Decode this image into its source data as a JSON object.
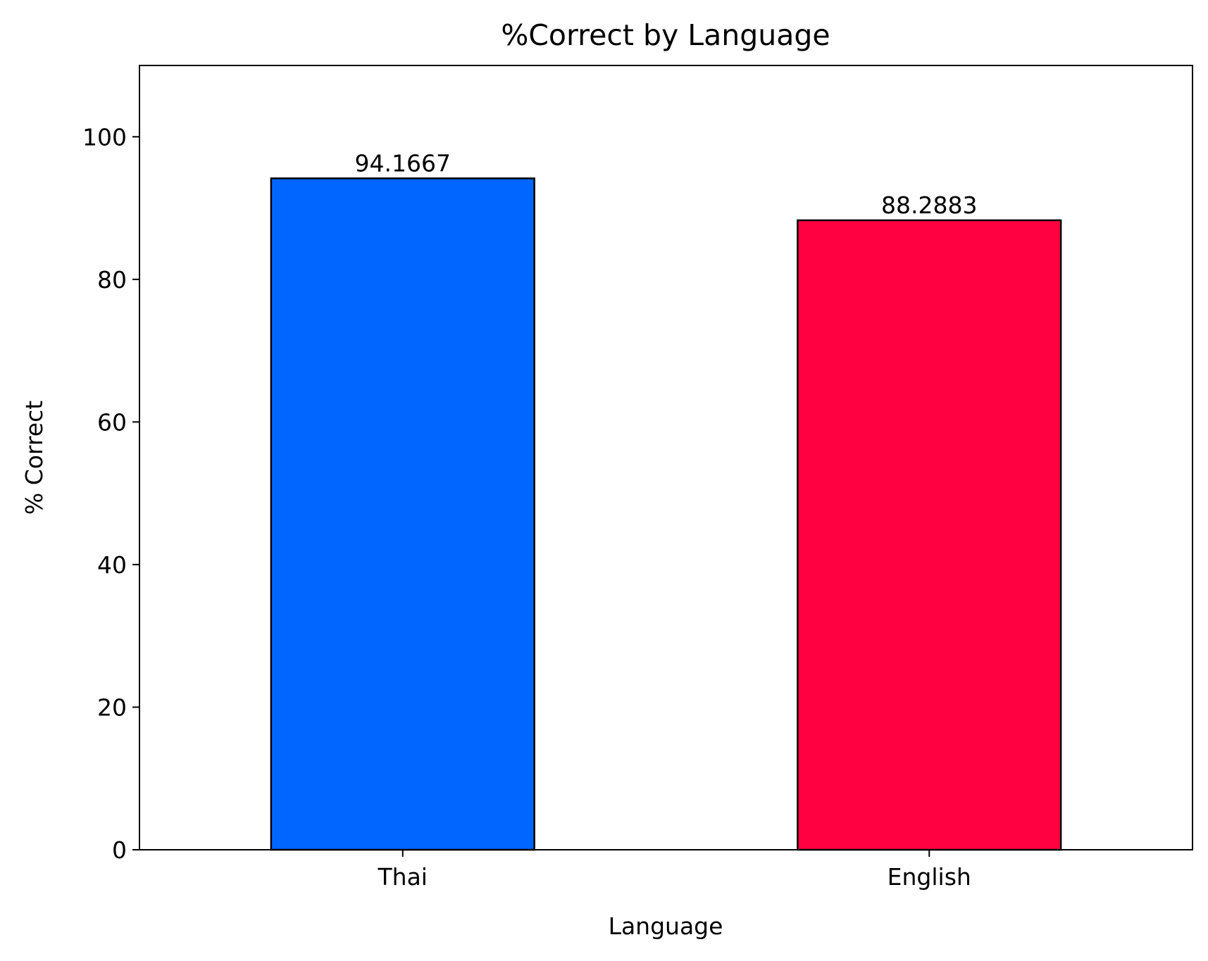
{
  "chart_data": {
    "type": "bar",
    "title": "%Correct by Language",
    "xlabel": "Language",
    "ylabel": "% Correct",
    "categories": [
      "Thai",
      "English"
    ],
    "values": [
      94.1667,
      88.2883
    ],
    "data_labels": [
      "94.1667",
      "88.2883"
    ],
    "bar_colors": [
      "#0066ff",
      "#ff0040"
    ],
    "edge_color": "#000000",
    "ylim": [
      0,
      110
    ],
    "yticks": [
      0,
      20,
      40,
      60,
      80,
      100
    ],
    "ytick_labels": [
      "0",
      "20",
      "40",
      "60",
      "80",
      "100"
    ],
    "grid": false,
    "legend": "none"
  }
}
